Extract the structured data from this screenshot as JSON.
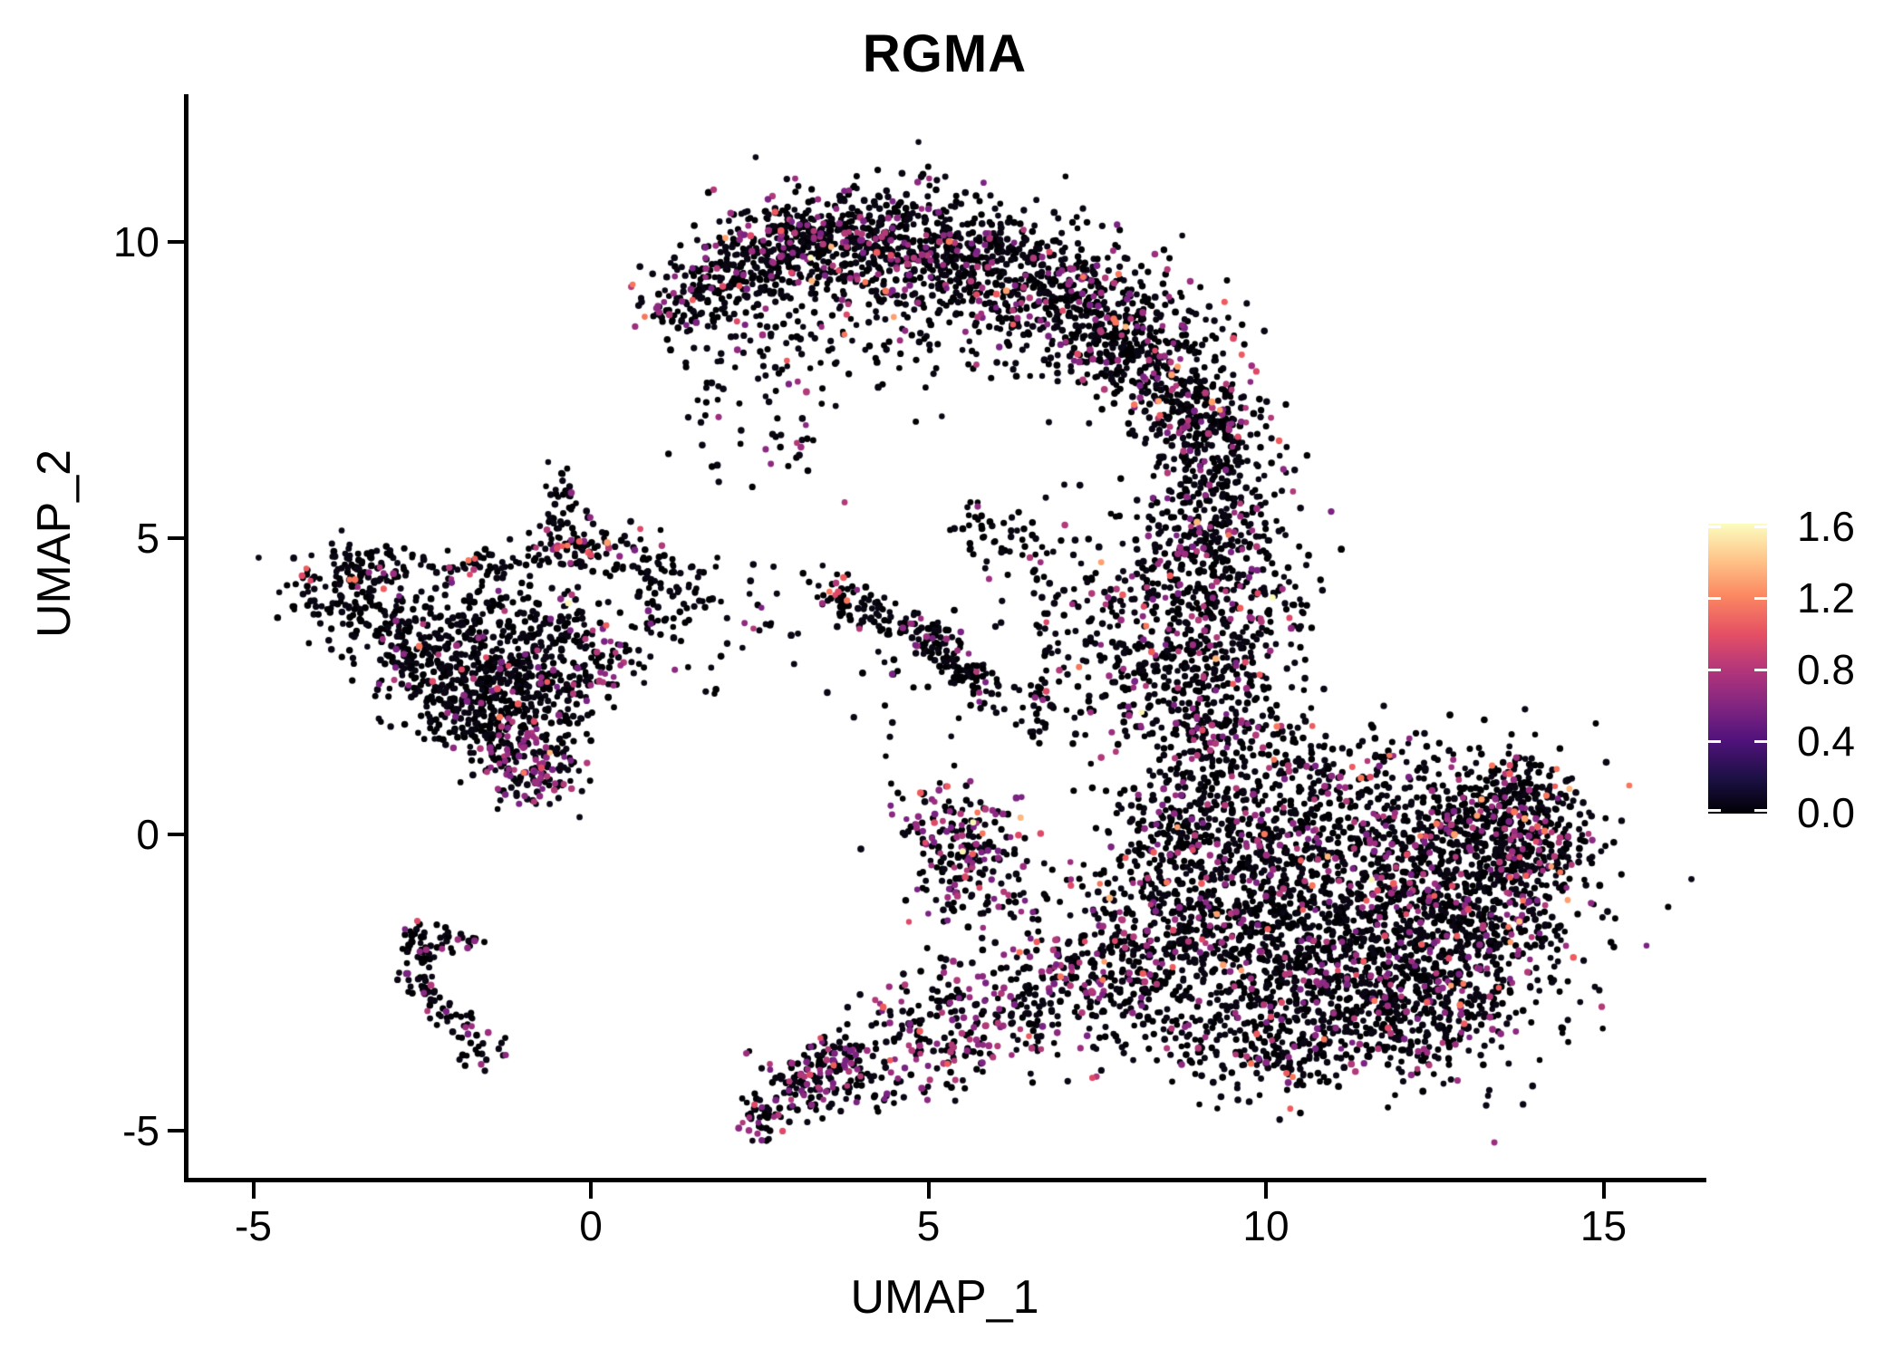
{
  "title": "RGMA",
  "axes": {
    "x_label": "UMAP_1",
    "y_label": "UMAP_2",
    "x_ticks": [
      -5,
      0,
      5,
      10,
      15
    ],
    "y_ticks": [
      -5,
      0,
      5,
      10
    ],
    "x_range": [
      -5.9,
      16.5
    ],
    "y_range": [
      -5.8,
      12.2
    ]
  },
  "colorbar": {
    "tick_labels": [
      "1.6",
      "1.2",
      "0.8",
      "0.4",
      "0.0"
    ],
    "tick_values": [
      1.6,
      1.2,
      0.8,
      0.4,
      0.0
    ],
    "max_value": 1.615,
    "gradient_stops": [
      [
        "0.00",
        "#000004"
      ],
      [
        "0.12",
        "#1c1044"
      ],
      [
        "0.25",
        "#4f127b"
      ],
      [
        "0.37",
        "#812581"
      ],
      [
        "0.50",
        "#b5367a"
      ],
      [
        "0.62",
        "#e55064"
      ],
      [
        "0.75",
        "#fb8761"
      ],
      [
        "0.87",
        "#fec287"
      ],
      [
        "1.00",
        "#fcfdbf"
      ]
    ]
  },
  "chart_data": {
    "type": "scatter",
    "title": "RGMA",
    "xlabel": "UMAP_1",
    "ylabel": "UMAP_2",
    "xlim": [
      -5.9,
      16.5
    ],
    "ylim": [
      -5.8,
      12.2
    ],
    "grid": false,
    "legend_position": "right-colorbar",
    "colormap": "magma",
    "expression_range": [
      0.0,
      1.615
    ],
    "point_radius_px": 3.5,
    "palette": {
      "black": [
        "#000004",
        "#0a0613"
      ],
      "purple": [
        "#7b2382",
        "#8c2981",
        "#9c2e7f",
        "#b13a79"
      ],
      "salmon": [
        "#de4968",
        "#ee5b5e",
        "#f8765c"
      ],
      "light": [
        "#fe9f6d",
        "#feb77e"
      ],
      "cream": [
        "#fcfdbf",
        "#f9f5b9"
      ]
    },
    "tier_profiles": {
      "A": {
        "purple": 0.115,
        "salmon": 0.013,
        "light": 0.003,
        "cream": 0.001
      },
      "B": {
        "purple": 0.13,
        "salmon": 0.02,
        "light": 0.004,
        "cream": 0.001
      },
      "C": {
        "purple": 0.115,
        "salmon": 0.018,
        "light": 0.003,
        "cream": 0.0008
      },
      "D": {
        "purple": 0.14,
        "salmon": 0.06,
        "light": 0.03,
        "cream": 0.004
      },
      "E": {
        "purple": 0.26,
        "salmon": 0.03,
        "light": 0.004,
        "cream": 0.001
      },
      "F": {
        "purple": 0.32,
        "salmon": 0.05,
        "light": 0.008,
        "cream": 0.003
      },
      "G": {
        "purple": 0.07,
        "salmon": 0.05,
        "light": 0.004,
        "cream": 0
      },
      "H": {
        "purple": 0.1,
        "salmon": 0.012,
        "light": 0,
        "cream": 0
      },
      "I": {
        "purple": 0.045,
        "salmon": 0.01,
        "light": 0.001,
        "cream": 0.0005
      },
      "J": {
        "purple": 0.33,
        "salmon": 0.035,
        "light": 0.004,
        "cream": 0
      },
      "K": {
        "purple": 0.085,
        "salmon": 0.004,
        "light": 0,
        "cream": 0
      },
      "S": {
        "purple": 0.06,
        "salmon": 0.01,
        "light": 0,
        "cream": 0
      }
    },
    "clusters": [
      [
        1.2,
        8.85,
        0.3,
        0.3,
        50,
        0,
        "A"
      ],
      [
        1.9,
        9.35,
        0.45,
        0.4,
        130,
        20,
        "A"
      ],
      [
        2.7,
        9.8,
        0.5,
        0.45,
        190,
        15,
        "A"
      ],
      [
        3.5,
        10.05,
        0.52,
        0.45,
        210,
        5,
        "A"
      ],
      [
        4.4,
        10.0,
        0.55,
        0.5,
        230,
        0,
        "A"
      ],
      [
        5.4,
        9.75,
        0.6,
        0.52,
        250,
        -10,
        "A"
      ],
      [
        6.4,
        9.35,
        0.65,
        0.55,
        260,
        -15,
        "A"
      ],
      [
        7.3,
        8.85,
        0.65,
        0.55,
        240,
        -25,
        "A"
      ],
      [
        8.1,
        8.25,
        0.6,
        0.55,
        220,
        -35,
        "A"
      ],
      [
        8.75,
        7.55,
        0.55,
        0.5,
        190,
        -55,
        "A"
      ],
      [
        9.1,
        6.8,
        0.45,
        0.5,
        150,
        -70,
        "A"
      ],
      [
        9.25,
        6.0,
        0.4,
        0.5,
        120,
        -85,
        "A"
      ],
      [
        9.15,
        5.2,
        0.4,
        0.45,
        90,
        -85,
        "A"
      ],
      [
        8.95,
        4.45,
        0.45,
        0.45,
        70,
        -80,
        "B"
      ],
      [
        2.8,
        8.5,
        0.7,
        0.55,
        45,
        0,
        "A"
      ],
      [
        4.0,
        8.6,
        0.9,
        0.6,
        55,
        0,
        "A"
      ],
      [
        5.2,
        8.4,
        0.8,
        0.55,
        40,
        0,
        "A"
      ],
      [
        2.2,
        7.4,
        0.5,
        0.6,
        30,
        0,
        "A"
      ],
      [
        3.0,
        6.7,
        0.4,
        0.5,
        22,
        0,
        "A"
      ],
      [
        9.55,
        4.6,
        0.5,
        0.5,
        100,
        0,
        "B"
      ],
      [
        9.9,
        3.8,
        0.5,
        0.5,
        70,
        0,
        "B"
      ],
      [
        8.6,
        3.6,
        0.65,
        0.7,
        150,
        0,
        "B"
      ],
      [
        9.3,
        2.9,
        0.55,
        0.55,
        120,
        0,
        "B"
      ],
      [
        8.2,
        2.5,
        0.6,
        0.55,
        110,
        0,
        "B"
      ],
      [
        8.8,
        1.9,
        0.6,
        0.45,
        90,
        0,
        "B"
      ],
      [
        7.5,
        4.4,
        0.7,
        0.7,
        60,
        0,
        "S"
      ],
      [
        6.9,
        3.3,
        0.35,
        0.8,
        40,
        0,
        "S"
      ],
      [
        6.2,
        4.9,
        0.45,
        0.4,
        30,
        0,
        "S"
      ],
      [
        5.75,
        5.15,
        0.3,
        0.3,
        20,
        0,
        "S"
      ],
      [
        11.4,
        -1.3,
        1.5,
        1.05,
        650,
        0,
        "C"
      ],
      [
        10.2,
        -0.3,
        1.0,
        0.9,
        380,
        0,
        "C"
      ],
      [
        12.7,
        -0.6,
        1.05,
        0.85,
        450,
        0,
        "C"
      ],
      [
        11.1,
        -2.6,
        1.25,
        0.7,
        380,
        -10,
        "C"
      ],
      [
        13.3,
        0.1,
        0.7,
        0.65,
        260,
        0,
        "C"
      ],
      [
        9.3,
        -1.6,
        0.8,
        0.8,
        230,
        0,
        "C"
      ],
      [
        12.2,
        -3.1,
        0.9,
        0.5,
        200,
        -15,
        "C"
      ],
      [
        9.0,
        0.5,
        0.6,
        0.6,
        150,
        0,
        "C"
      ],
      [
        8.3,
        -0.7,
        0.65,
        0.75,
        140,
        0,
        "C"
      ],
      [
        8.0,
        -2.1,
        0.7,
        0.55,
        120,
        0,
        "C"
      ],
      [
        10.4,
        -3.5,
        0.7,
        0.4,
        110,
        0,
        "C"
      ],
      [
        13.2,
        -1.9,
        0.7,
        0.55,
        180,
        0,
        "C"
      ],
      [
        9.6,
        1.7,
        0.5,
        0.45,
        70,
        0,
        "C"
      ],
      [
        10.7,
        1.2,
        0.6,
        0.4,
        60,
        0,
        "C"
      ],
      [
        11.9,
        0.95,
        0.65,
        0.35,
        55,
        0,
        "C"
      ],
      [
        8.9,
        -3.4,
        0.6,
        0.4,
        70,
        0,
        "C"
      ],
      [
        9.9,
        -3.9,
        0.5,
        0.3,
        50,
        0,
        "C"
      ],
      [
        14.0,
        -0.1,
        0.4,
        0.75,
        150,
        0,
        "D"
      ],
      [
        13.7,
        0.6,
        0.35,
        0.35,
        60,
        0,
        "D"
      ],
      [
        7.2,
        -2.5,
        0.75,
        0.6,
        160,
        -20,
        "E"
      ],
      [
        6.0,
        -3.0,
        0.7,
        0.45,
        140,
        -22,
        "E"
      ],
      [
        4.8,
        -3.5,
        0.6,
        0.4,
        120,
        -25,
        "E"
      ],
      [
        3.7,
        -3.95,
        0.45,
        0.3,
        110,
        -30,
        "E"
      ],
      [
        3.05,
        -4.35,
        0.3,
        0.3,
        70,
        0,
        "E"
      ],
      [
        2.55,
        -4.8,
        0.22,
        0.25,
        35,
        0,
        "E"
      ],
      [
        5.65,
        -0.45,
        0.5,
        0.55,
        190,
        0,
        "F"
      ],
      [
        5.2,
        0.25,
        0.35,
        0.35,
        50,
        0,
        "F"
      ],
      [
        3.95,
        3.85,
        0.45,
        0.2,
        80,
        -28,
        "G"
      ],
      [
        5.4,
        2.9,
        0.5,
        0.16,
        110,
        -49,
        "H"
      ],
      [
        5.0,
        3.4,
        0.22,
        0.18,
        28,
        0,
        "H"
      ],
      [
        6.6,
        2.1,
        0.12,
        0.4,
        22,
        0,
        "B"
      ],
      [
        4.5,
        2.4,
        0.7,
        0.6,
        22,
        0,
        "S"
      ],
      [
        -3.8,
        4.2,
        0.42,
        0.38,
        100,
        0,
        "I"
      ],
      [
        -3.1,
        4.5,
        0.3,
        0.2,
        40,
        10,
        "I"
      ],
      [
        -2.65,
        3.25,
        0.45,
        0.5,
        150,
        0,
        "I"
      ],
      [
        -3.25,
        3.7,
        0.25,
        0.3,
        35,
        0,
        "I"
      ],
      [
        -1.55,
        3.1,
        0.6,
        0.65,
        280,
        0,
        "I"
      ],
      [
        -1.0,
        2.25,
        0.5,
        0.55,
        220,
        0,
        "I"
      ],
      [
        -2.0,
        2.3,
        0.45,
        0.5,
        130,
        0,
        "I"
      ],
      [
        -0.4,
        3.4,
        0.4,
        0.4,
        80,
        0,
        "I"
      ],
      [
        -0.45,
        5.6,
        0.13,
        0.4,
        35,
        0,
        "I"
      ],
      [
        -0.55,
        4.9,
        0.3,
        0.3,
        50,
        0,
        "I"
      ],
      [
        -1.6,
        4.55,
        0.45,
        0.18,
        40,
        0,
        "I"
      ],
      [
        0.1,
        4.8,
        0.4,
        0.25,
        40,
        0,
        "G"
      ],
      [
        0.9,
        4.5,
        0.5,
        0.2,
        45,
        -10,
        "I"
      ],
      [
        1.35,
        4.05,
        0.22,
        0.3,
        28,
        0,
        "I"
      ],
      [
        1.0,
        3.65,
        0.2,
        0.2,
        20,
        0,
        "I"
      ],
      [
        0.3,
        3.0,
        0.3,
        0.25,
        40,
        0,
        "F"
      ],
      [
        -0.05,
        2.6,
        0.25,
        0.2,
        25,
        0,
        "F"
      ],
      [
        -1.1,
        1.4,
        0.35,
        0.33,
        110,
        0,
        "J"
      ],
      [
        -0.75,
        0.9,
        0.3,
        0.25,
        55,
        0,
        "J"
      ],
      [
        1.8,
        2.9,
        0.6,
        0.5,
        18,
        0,
        "S"
      ],
      [
        2.4,
        3.9,
        0.5,
        0.4,
        14,
        0,
        "S"
      ],
      [
        -2.55,
        -2.05,
        0.12,
        0.4,
        40,
        0,
        "K"
      ],
      [
        -2.05,
        -1.8,
        0.3,
        0.13,
        28,
        0,
        "K"
      ],
      [
        -2.2,
        -2.95,
        0.42,
        0.13,
        45,
        -47,
        "K"
      ],
      [
        -1.75,
        -3.6,
        0.16,
        0.2,
        22,
        0,
        "K"
      ]
    ],
    "accent_points": [
      {
        "x": -4.2,
        "y": 4.4,
        "s": 0.07,
        "n": 3,
        "tier": "salmon"
      },
      {
        "x": -1.75,
        "y": 4.6,
        "s": 0.05,
        "n": 2,
        "tier": "salmon"
      },
      {
        "x": 3.6,
        "y": 4.05,
        "s": 0.07,
        "n": 3,
        "tier": "salmon"
      },
      {
        "x": -0.35,
        "y": 3.9,
        "s": 0.01,
        "n": 1,
        "tier": "cream"
      },
      {
        "x": 10.1,
        "y": 4.0,
        "s": 0.01,
        "n": 1,
        "tier": "cream"
      },
      {
        "x": 5.5,
        "y": -0.3,
        "s": 0.01,
        "n": 1,
        "tier": "cream"
      },
      {
        "x": -1.62,
        "y": -3.9,
        "s": 0.01,
        "n": 1,
        "tier": "purple"
      }
    ]
  }
}
